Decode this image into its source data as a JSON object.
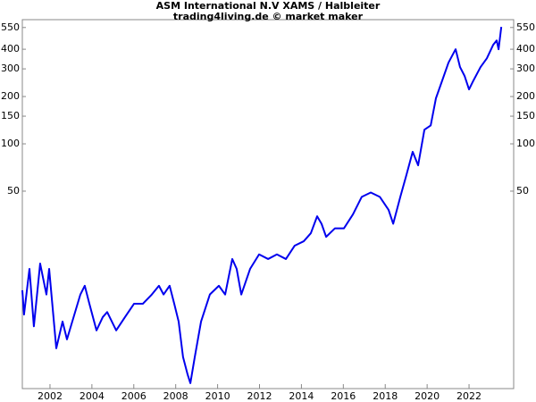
{
  "chart_data": {
    "type": "line",
    "title": "ASM International N.V XAMS / Halbleiter",
    "subtitle": "trading4living.de © market maker",
    "x": [
      2000.68,
      2000.76,
      2001.02,
      2001.23,
      2001.53,
      2001.83,
      2001.96,
      2002.3,
      2002.6,
      2002.81,
      2003.45,
      2003.66,
      2003.88,
      2004.22,
      2004.52,
      2004.73,
      2005.16,
      2005.58,
      2006.01,
      2006.43,
      2006.86,
      2007.2,
      2007.42,
      2007.71,
      2007.93,
      2008.14,
      2008.35,
      2008.57,
      2008.7,
      2008.91,
      2009.21,
      2009.63,
      2010.06,
      2010.36,
      2010.7,
      2010.91,
      2011.13,
      2011.55,
      2011.98,
      2012.41,
      2012.83,
      2013.26,
      2013.68,
      2014.11,
      2014.45,
      2014.75,
      2014.96,
      2015.18,
      2015.6,
      2016.03,
      2016.46,
      2016.88,
      2017.31,
      2017.74,
      2018.16,
      2018.38,
      2018.72,
      2019.02,
      2019.31,
      2019.57,
      2019.87,
      2020.17,
      2020.42,
      2020.72,
      2021.02,
      2021.36,
      2021.57,
      2021.79,
      2022.0,
      2022.21,
      2022.55,
      2022.85,
      2023.15,
      2023.32,
      2023.41,
      2023.54
    ],
    "series": [
      {
        "color": "#0000ee",
        "values": [
          11.7,
          8.2,
          16,
          6.9,
          17.3,
          11,
          16,
          5,
          7.4,
          5.7,
          11,
          12.5,
          9.6,
          6.5,
          7.9,
          8.5,
          6.5,
          7.9,
          9.6,
          9.6,
          11,
          12.5,
          11,
          12.5,
          9.6,
          7.4,
          4.4,
          3.4,
          3.0,
          4.4,
          7.4,
          11,
          12.5,
          11,
          18.5,
          16,
          11,
          16,
          19.8,
          18.5,
          19.8,
          18.5,
          22.5,
          24,
          27,
          34.6,
          31,
          25.6,
          29,
          29,
          35.6,
          46,
          49,
          46,
          38,
          31,
          46,
          64,
          89,
          73,
          123,
          131,
          195,
          253,
          329,
          400,
          308,
          270,
          222,
          253,
          308,
          350,
          426,
          455,
          400,
          555
        ]
      }
    ],
    "xlim": [
      2000.68,
      2024.13
    ],
    "xticks": [
      2002,
      2004,
      2006,
      2008,
      2010,
      2012,
      2014,
      2016,
      2018,
      2020,
      2022
    ],
    "ylim": [
      2.77,
      617
    ],
    "yticks": [
      50,
      100,
      150,
      200,
      300,
      400,
      550
    ],
    "log_scale": true
  }
}
